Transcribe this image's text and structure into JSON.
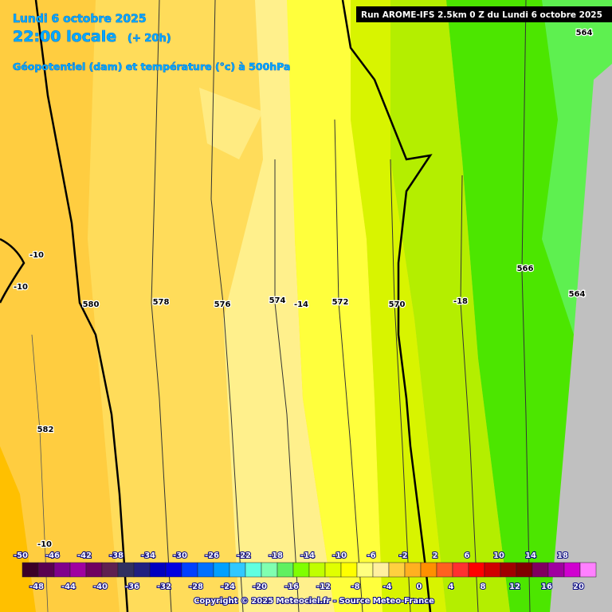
{
  "header": {
    "date": "Lundi 6 octobre 2025",
    "time": "22:00 locale",
    "lead": "(+ 20h)",
    "field": "Géopotentiel (dam) et température (°c) à 500hPa",
    "run": "Run AROME-IFS 2.5km 0 Z du Lundi 6 octobre 2025"
  },
  "contour_labels": [
    564,
    -10,
    -10,
    580,
    578,
    576,
    574,
    -14,
    572,
    570,
    -18,
    566,
    564,
    582,
    -10
  ],
  "legend": {
    "top_labels": [
      -50,
      -46,
      -42,
      -38,
      -34,
      -30,
      -26,
      -22,
      -18,
      -14,
      -10,
      -6,
      -2,
      2,
      6,
      10,
      14,
      18
    ],
    "bottom_labels": [
      -48,
      -44,
      -40,
      -36,
      -32,
      -28,
      -24,
      -20,
      -16,
      -12,
      -8,
      -4,
      0,
      4,
      8,
      12,
      16,
      20
    ],
    "colors": [
      "#3c0028",
      "#5a0050",
      "#80008c",
      "#a000a0",
      "#700060",
      "#602050",
      "#303060",
      "#202080",
      "#0000c0",
      "#0000e0",
      "#0040ff",
      "#0070ff",
      "#00a0ff",
      "#30c8ff",
      "#60ffe0",
      "#80ffb0",
      "#60f060",
      "#80ff00",
      "#c0ff00",
      "#e0ff00",
      "#ffff00",
      "#ffff80",
      "#fff0a0",
      "#ffd040",
      "#ffb020",
      "#ff9000",
      "#ff6020",
      "#ff3030",
      "#ff0000",
      "#d00000",
      "#a00000",
      "#800000",
      "#800060",
      "#a000a0",
      "#d000d0",
      "#ff80ff"
    ]
  },
  "footer": "Copyright © 2025 Meteociel.fr - Source Meteo-France"
}
